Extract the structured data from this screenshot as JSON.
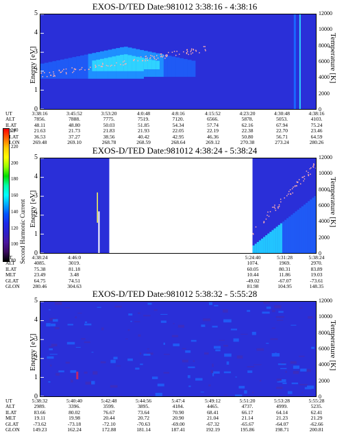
{
  "colorbar": {
    "label": "Second Harmonic Current",
    "ticks": [
      "240",
      "220",
      "200",
      "180",
      "160",
      "140",
      "120",
      "100",
      "80"
    ],
    "colors": [
      "#ff0000",
      "#ff6600",
      "#ffcc00",
      "#ffff00",
      "#99ff00",
      "#00dd00",
      "#00ffaa",
      "#00ffff",
      "#00aaff",
      "#0055ff",
      "#1d29e8",
      "#2c1fc8",
      "#4a169e",
      "#3a0a5e",
      "#000000"
    ]
  },
  "axes": {
    "ylabel_left": "Energy [eV]",
    "ylabel_right": "Temperature [K]",
    "y_ticks_left": [
      "5",
      "4",
      "3",
      "2",
      "1",
      "0"
    ],
    "y_ticks_right": [
      "12000",
      "10000",
      "8000",
      "6000",
      "4000",
      "2000",
      "0"
    ]
  },
  "ephemeris_labels": [
    "UT",
    "ALT",
    "ILAT",
    "MLT",
    "GLAT",
    "GLON"
  ],
  "chart_data": [
    {
      "type": "heatmap",
      "title": "EXOS-D/TED   Date:981012   3:38:16 - 4:38:16",
      "ylabel": "Energy [eV]",
      "ylabel_right": "Temperature [K]",
      "ylim": [
        0,
        5
      ],
      "ylim_right": [
        0,
        12000
      ],
      "ephemeris": {
        "UT": [
          "3:38:16",
          "3:45:52",
          "3:53:20",
          "4:0:48",
          "4:8:16",
          "4:15:52",
          "4:23:20",
          "4:30:48",
          "4:38:16"
        ],
        "ALT": [
          "7856.",
          "7888.",
          "7775.",
          "7519.",
          "7120.",
          "6566.",
          "5878.",
          "5053.",
          "4103."
        ],
        "ILAT": [
          "48.11",
          "48.80",
          "50.03",
          "51.85",
          "54.34",
          "57.74",
          "62.16",
          "67.94",
          "75.24"
        ],
        "MLT": [
          "21.63",
          "21.73",
          "21.83",
          "21.93",
          "22.05",
          "22.19",
          "22.38",
          "22.70",
          "23.46"
        ],
        "GLAT": [
          "36.53",
          "37.27",
          "38.56",
          "40.42",
          "42.95",
          "46.36",
          "50.80",
          "56.71",
          "64.59"
        ],
        "GLON": [
          "269.48",
          "269.10",
          "268.78",
          "268.59",
          "268.64",
          "269.12",
          "270.38",
          "273.24",
          "280.26"
        ]
      }
    },
    {
      "type": "heatmap",
      "title": "EXOS-D/TED   Date:981012   4:38:24 - 5:38:24",
      "ylabel": "Energy [eV]",
      "ylabel_right": "Temperature [K]",
      "ylim": [
        0,
        5
      ],
      "ylim_right": [
        0,
        12000
      ],
      "ephemeris": {
        "UT": [
          "4:38:24",
          "4:46:0",
          "5:24:40",
          "5:31:28",
          "5:38:24"
        ],
        "ALT": [
          "4085.",
          "3019.",
          "1074.",
          "1969.",
          "2970."
        ],
        "ILAT": [
          "75.38",
          "81.18",
          "60.05",
          "80.31",
          "83.89"
        ],
        "MLT": [
          "23.49",
          "3.48",
          "10.44",
          "11.86",
          "19.03"
        ],
        "GLAT": [
          "64.75",
          "74.51",
          "-49.02",
          "-67.07",
          "-73.61"
        ],
        "GLON": [
          "280.46",
          "304.63",
          "81.98",
          "104.95",
          "148.35"
        ]
      }
    },
    {
      "type": "heatmap",
      "title": "EXOS-D/TED   Date:981012   5:38:32 - 5:55:28",
      "ylabel": "Energy [eV]",
      "ylabel_right": "Temperature [K]",
      "ylim": [
        0,
        5
      ],
      "ylim_right": [
        0,
        12000
      ],
      "ephemeris": {
        "UT": [
          "5:38:32",
          "5:40:40",
          "5:42:48",
          "5:44:56",
          "5:47:4",
          "5:49:12",
          "5:51:20",
          "5:53:28",
          "5:55:28"
        ],
        "ALT": [
          "2989.",
          "3396.",
          "3599.",
          "3895.",
          "4184.",
          "4465.",
          "4737.",
          "4999.",
          "5235."
        ],
        "ILAT": [
          "83.66",
          "80.02",
          "76.67",
          "73.64",
          "70.90",
          "68.41",
          "66.17",
          "64.14",
          "62.41"
        ],
        "MLT": [
          "19.11",
          "19.98",
          "20.44",
          "20.72",
          "20.90",
          "21.04",
          "21.14",
          "21.23",
          "21.29"
        ],
        "GLAT": [
          "-73.62",
          "-73.18",
          "-72.10",
          "-70.63",
          "-69.00",
          "-67.32",
          "-65.67",
          "-64.07",
          "-62.66"
        ],
        "GLON": [
          "149.23",
          "162.24",
          "172.88",
          "181.14",
          "187.41",
          "192.19",
          "195.86",
          "198.71",
          "200.81"
        ]
      }
    }
  ]
}
